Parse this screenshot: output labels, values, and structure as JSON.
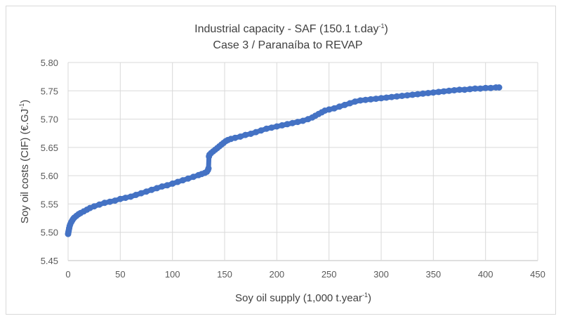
{
  "chart_data": {
    "type": "scatter",
    "title_line1_main": "Industrial capacity - SAF (150.1 t.day",
    "title_line1_sup": "-1",
    "title_line1_end": ")",
    "title_line2": "Case 3 / Paranaíba  to REVAP",
    "xlabel_main": "Soy oil supply (1,000 t.year",
    "xlabel_sup": "-1",
    "xlabel_end": ")",
    "ylabel_main": "Soy oil costs (CIF) (€.GJ",
    "ylabel_sup": "-1",
    "ylabel_end": ")",
    "xlim": [
      0,
      450
    ],
    "ylim": [
      5.45,
      5.8
    ],
    "x_ticks": [
      "0",
      "50",
      "100",
      "150",
      "200",
      "250",
      "300",
      "350",
      "400",
      "450"
    ],
    "y_ticks": [
      "5.45",
      "5.50",
      "5.55",
      "5.60",
      "5.65",
      "5.70",
      "5.75",
      "5.80"
    ],
    "x_tick_values": [
      0,
      50,
      100,
      150,
      200,
      250,
      300,
      350,
      400,
      450
    ],
    "y_tick_values": [
      5.45,
      5.5,
      5.55,
      5.6,
      5.65,
      5.7,
      5.75,
      5.8
    ],
    "grid": "vertical and horizontal",
    "marker_color": "#4472c4",
    "series": [
      {
        "points": [
          [
            0,
            5.497
          ],
          [
            0.3,
            5.5
          ],
          [
            0.6,
            5.503
          ],
          [
            1,
            5.507
          ],
          [
            1.5,
            5.511
          ],
          [
            2,
            5.514
          ],
          [
            3,
            5.518
          ],
          [
            4,
            5.521
          ],
          [
            5,
            5.524
          ],
          [
            6,
            5.526
          ],
          [
            8,
            5.529
          ],
          [
            10,
            5.532
          ],
          [
            12,
            5.534
          ],
          [
            15,
            5.537
          ],
          [
            18,
            5.54
          ],
          [
            21,
            5.543
          ],
          [
            25,
            5.546
          ],
          [
            30,
            5.549
          ],
          [
            35,
            5.552
          ],
          [
            40,
            5.554
          ],
          [
            45,
            5.556
          ],
          [
            50,
            5.559
          ],
          [
            55,
            5.561
          ],
          [
            60,
            5.563
          ],
          [
            65,
            5.566
          ],
          [
            70,
            5.569
          ],
          [
            75,
            5.572
          ],
          [
            80,
            5.575
          ],
          [
            85,
            5.578
          ],
          [
            90,
            5.581
          ],
          [
            95,
            5.583
          ],
          [
            100,
            5.586
          ],
          [
            105,
            5.589
          ],
          [
            110,
            5.592
          ],
          [
            115,
            5.595
          ],
          [
            120,
            5.598
          ],
          [
            125,
            5.601
          ],
          [
            128,
            5.603
          ],
          [
            131,
            5.605
          ],
          [
            133,
            5.607
          ],
          [
            134,
            5.61
          ],
          [
            134.5,
            5.613
          ],
          [
            135,
            5.634
          ],
          [
            135.5,
            5.637
          ],
          [
            137,
            5.64
          ],
          [
            139,
            5.643
          ],
          [
            141,
            5.646
          ],
          [
            143,
            5.649
          ],
          [
            145,
            5.652
          ],
          [
            147,
            5.655
          ],
          [
            149,
            5.658
          ],
          [
            151,
            5.661
          ],
          [
            153,
            5.663
          ],
          [
            156,
            5.665
          ],
          [
            160,
            5.667
          ],
          [
            165,
            5.669
          ],
          [
            170,
            5.672
          ],
          [
            175,
            5.674
          ],
          [
            180,
            5.677
          ],
          [
            185,
            5.68
          ],
          [
            190,
            5.683
          ],
          [
            195,
            5.685
          ],
          [
            200,
            5.687
          ],
          [
            205,
            5.689
          ],
          [
            210,
            5.691
          ],
          [
            215,
            5.693
          ],
          [
            220,
            5.695
          ],
          [
            225,
            5.697
          ],
          [
            230,
            5.7
          ],
          [
            234,
            5.703
          ],
          [
            237,
            5.706
          ],
          [
            240,
            5.709
          ],
          [
            243,
            5.712
          ],
          [
            246,
            5.715
          ],
          [
            250,
            5.717
          ],
          [
            255,
            5.719
          ],
          [
            260,
            5.722
          ],
          [
            265,
            5.725
          ],
          [
            270,
            5.728
          ],
          [
            275,
            5.731
          ],
          [
            280,
            5.733
          ],
          [
            285,
            5.734
          ],
          [
            290,
            5.735
          ],
          [
            295,
            5.736
          ],
          [
            300,
            5.737
          ],
          [
            305,
            5.738
          ],
          [
            310,
            5.739
          ],
          [
            315,
            5.74
          ],
          [
            320,
            5.741
          ],
          [
            325,
            5.742
          ],
          [
            330,
            5.743
          ],
          [
            335,
            5.744
          ],
          [
            340,
            5.745
          ],
          [
            345,
            5.746
          ],
          [
            350,
            5.747
          ],
          [
            355,
            5.748
          ],
          [
            360,
            5.749
          ],
          [
            365,
            5.75
          ],
          [
            370,
            5.751
          ],
          [
            375,
            5.752
          ],
          [
            380,
            5.752
          ],
          [
            385,
            5.753
          ],
          [
            390,
            5.754
          ],
          [
            395,
            5.754
          ],
          [
            400,
            5.755
          ],
          [
            405,
            5.755
          ],
          [
            410,
            5.756
          ],
          [
            413,
            5.756
          ]
        ]
      }
    ]
  }
}
